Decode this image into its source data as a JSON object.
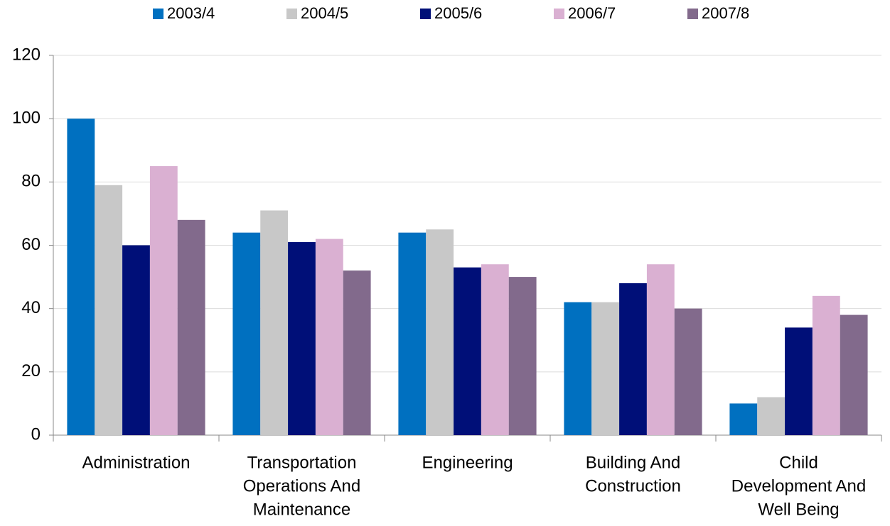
{
  "chart_data": {
    "type": "bar",
    "categories": [
      [
        "Administration"
      ],
      [
        "Transportation",
        "Operations And",
        "Maintenance"
      ],
      [
        "Engineering"
      ],
      [
        "Building And",
        "Construction"
      ],
      [
        "Child",
        "Development And",
        "Well Being"
      ]
    ],
    "series": [
      {
        "name": "2003/4",
        "color": "#0070c0",
        "values": [
          100,
          64,
          64,
          42,
          10
        ]
      },
      {
        "name": "2004/5",
        "color": "#c8c8c8",
        "values": [
          79,
          71,
          65,
          42,
          12
        ]
      },
      {
        "name": "2005/6",
        "color": "#000f78",
        "values": [
          60,
          61,
          53,
          48,
          34
        ]
      },
      {
        "name": "2006/7",
        "color": "#dab0d2",
        "values": [
          85,
          62,
          54,
          54,
          44
        ]
      },
      {
        "name": "2007/8",
        "color": "#826a8c",
        "values": [
          68,
          52,
          50,
          40,
          38
        ]
      }
    ],
    "ylim": [
      0,
      120
    ],
    "yticks": [
      0,
      20,
      40,
      60,
      80,
      100,
      120
    ],
    "grid": true,
    "legend": "top"
  }
}
